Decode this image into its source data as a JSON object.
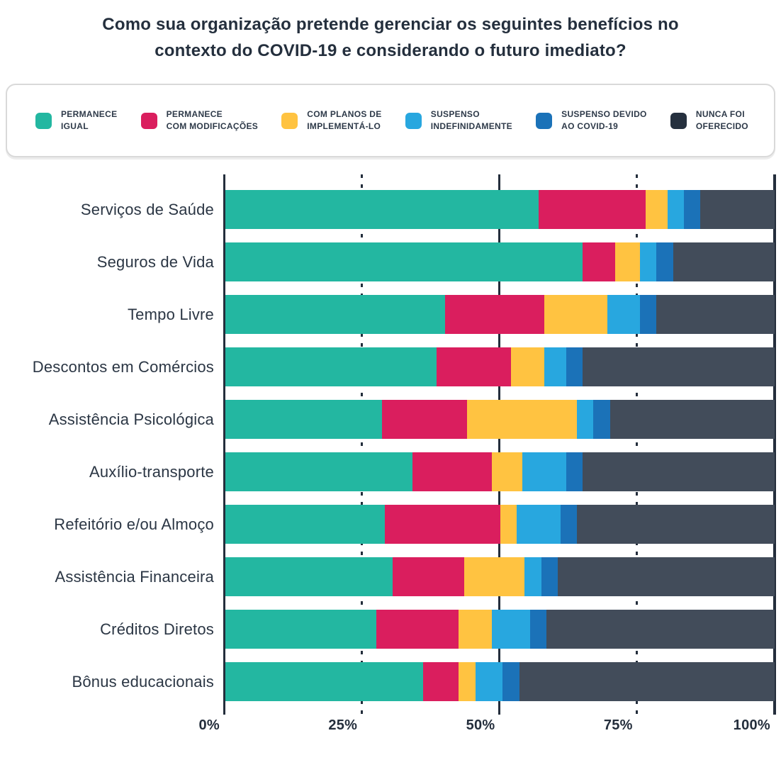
{
  "title": "Como sua organização pretende gerenciar os seguintes benefícios no\ncontexto do COVID-19 e considerando o futuro imediato?",
  "colors": {
    "teal": "#23B7A1",
    "crimson": "#DA1E5E",
    "yellow": "#FFC341",
    "light_blue": "#28A7DF",
    "blue": "#1B72B8",
    "bar_dark": "#424C5A",
    "axis_line": "#242E3C",
    "title_text": "#242F3D",
    "label_text": "#2B3644",
    "legend_text": "#2E3A49",
    "legend_border": "#D9D9D9"
  },
  "chart_data": {
    "type": "bar",
    "orientation": "horizontal-stacked",
    "title": "Como sua organização pretende gerenciar os seguintes benefícios no contexto do COVID-19 e considerando o futuro imediato?",
    "categories": [
      "Serviços de Saúde",
      "Seguros de Vida",
      "Tempo Livre",
      "Descontos em Comércios",
      "Assistência Psicológica",
      "Auxílio-transporte",
      "Refeitório e/ou Almoço",
      "Assistência Financeira",
      "Créditos Diretos",
      "Bônus educacionais"
    ],
    "series": [
      {
        "name": "Permanece igual",
        "legend_label": "PERMANECE\nIGUAL",
        "color": "#23B7A1",
        "legend_color": "#23B7A1",
        "values": [
          57,
          65,
          40,
          38.5,
          28.5,
          34,
          29,
          30.5,
          27.5,
          36
        ]
      },
      {
        "name": "Permanece com modificações",
        "legend_label": "PERMANECE\nCOM MODIFICAÇÕES",
        "color": "#DA1E5E",
        "legend_color": "#DA1E5E",
        "values": [
          19.5,
          6,
          18,
          13.5,
          15.5,
          14.5,
          21,
          13,
          15,
          6.5
        ]
      },
      {
        "name": "Com planos de implementá-lo",
        "legend_label": "COM PLANOS DE\nIMPLEMENTÁ-LO",
        "color": "#FFC341",
        "legend_color": "#FFC341",
        "values": [
          4,
          4.5,
          11.5,
          6,
          20,
          5.5,
          3,
          11,
          6,
          3
        ]
      },
      {
        "name": "Suspenso indefinidamente",
        "legend_label": "SUSPENSO\nINDEFINIDAMENTE",
        "color": "#28A7DF",
        "legend_color": "#28A7DF",
        "values": [
          3,
          3,
          6,
          4,
          3,
          8,
          8,
          3,
          7,
          5
        ]
      },
      {
        "name": "Suspenso devido ao COVID-19",
        "legend_label": "SUSPENSO DEVIDO\nAO COVID-19",
        "color": "#1B72B8",
        "legend_color": "#1B72B8",
        "values": [
          3,
          3,
          3,
          3,
          3,
          3,
          3,
          3,
          3,
          3
        ]
      },
      {
        "name": "Nunca foi oferecido",
        "legend_label": "NUNCA FOI\nOFERECIDO",
        "color": "#424C5A",
        "legend_color": "#25303E",
        "values": [
          13.5,
          18.5,
          21.5,
          35,
          30,
          35,
          36,
          39.5,
          41.5,
          46.5
        ]
      }
    ],
    "x_axis": {
      "tick_labels": [
        "0%",
        "25%",
        "50%",
        "75%",
        "100%"
      ],
      "tick_values": [
        0,
        25,
        50,
        75,
        100
      ],
      "range": [
        0,
        100
      ],
      "gridlines_solid_at": [
        0,
        50,
        100
      ],
      "gridlines_dashed_at": [
        25,
        75
      ]
    },
    "legend_position": "top",
    "grid": true
  }
}
